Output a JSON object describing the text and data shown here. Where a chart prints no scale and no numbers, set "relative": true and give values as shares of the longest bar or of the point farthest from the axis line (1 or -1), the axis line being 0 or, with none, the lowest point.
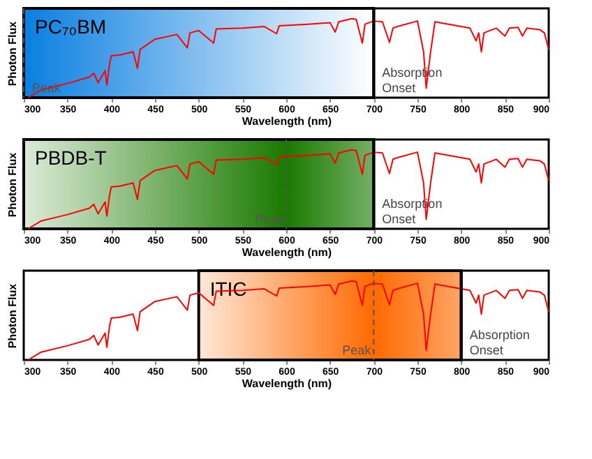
{
  "chart_data": [
    {
      "type": "line",
      "x": [
        305,
        320,
        350,
        375,
        380,
        385,
        393,
        395,
        398,
        400,
        410,
        425,
        430,
        433,
        450,
        475,
        487,
        490,
        500,
        517,
        520,
        550,
        575,
        589,
        592,
        625,
        650,
        656,
        660,
        675,
        680,
        687,
        690,
        700,
        710,
        718,
        722,
        730,
        750,
        757,
        760,
        765,
        770,
        800,
        810,
        817,
        820,
        823,
        826,
        840,
        850,
        855,
        865,
        870,
        875,
        890,
        895,
        900
      ],
      "series": [
        {
          "color": "#ff0000",
          "values": [
            0,
            0.1,
            0.18,
            0.26,
            0.31,
            0.19,
            0.34,
            0.16,
            0.42,
            0.53,
            0.54,
            0.58,
            0.37,
            0.61,
            0.74,
            0.8,
            0.63,
            0.82,
            0.85,
            0.69,
            0.87,
            0.88,
            0.9,
            0.81,
            0.91,
            0.93,
            0.95,
            0.83,
            0.96,
            1.0,
            0.99,
            0.69,
            0.93,
            0.97,
            0.96,
            0.7,
            0.88,
            0.91,
            0.97,
            0.58,
            0.12,
            0.58,
            0.96,
            0.9,
            0.88,
            0.72,
            0.82,
            0.58,
            0.82,
            0.88,
            0.78,
            0.88,
            0.89,
            0.78,
            0.88,
            0.86,
            0.82,
            0.61
          ]
        }
      ],
      "relative": true,
      "xlim": [
        300,
        900
      ],
      "xticks": [
        300,
        350,
        400,
        450,
        500,
        550,
        600,
        650,
        700,
        750,
        800,
        850,
        900
      ],
      "xlabel": "Wavelength (nm)",
      "ylabel": "Photon Flux",
      "tick_labels": "x",
      "grid": false,
      "line_style": "solid",
      "marker": "none",
      "bands": [
        {
          "axis": "x",
          "from": 300,
          "to": 700,
          "label": "PC₇₀BM",
          "color": "#0a7fe0"
        }
      ],
      "ref_lines": [
        {
          "axis": "x",
          "value": 700,
          "label": "Absorption Onset",
          "color": "#000000",
          "line_style": "solid"
        },
        {
          "axis": "x",
          "value": 300,
          "label": "Peak",
          "color": "#555555",
          "line_style": "dashed"
        }
      ]
    },
    {
      "type": "line",
      "x": [
        305,
        320,
        350,
        375,
        380,
        385,
        393,
        395,
        398,
        400,
        410,
        425,
        430,
        433,
        450,
        475,
        487,
        490,
        500,
        517,
        520,
        550,
        575,
        589,
        592,
        625,
        650,
        656,
        660,
        675,
        680,
        687,
        690,
        700,
        710,
        718,
        722,
        730,
        750,
        757,
        760,
        765,
        770,
        800,
        810,
        817,
        820,
        823,
        826,
        840,
        850,
        855,
        865,
        870,
        875,
        890,
        895,
        900
      ],
      "series": [
        {
          "color": "#ff0000",
          "values": [
            0,
            0.1,
            0.18,
            0.26,
            0.31,
            0.19,
            0.34,
            0.16,
            0.42,
            0.53,
            0.54,
            0.58,
            0.37,
            0.61,
            0.74,
            0.8,
            0.63,
            0.82,
            0.85,
            0.69,
            0.87,
            0.88,
            0.9,
            0.81,
            0.91,
            0.93,
            0.95,
            0.83,
            0.96,
            1.0,
            0.99,
            0.69,
            0.93,
            0.97,
            0.96,
            0.7,
            0.88,
            0.91,
            0.97,
            0.58,
            0.12,
            0.58,
            0.96,
            0.9,
            0.88,
            0.72,
            0.82,
            0.58,
            0.82,
            0.88,
            0.78,
            0.88,
            0.89,
            0.78,
            0.88,
            0.86,
            0.82,
            0.61
          ]
        }
      ],
      "relative": true,
      "xlim": [
        300,
        900
      ],
      "xticks": [
        300,
        350,
        400,
        450,
        500,
        550,
        600,
        650,
        700,
        750,
        800,
        850,
        900
      ],
      "xlabel": "Wavelength (nm)",
      "ylabel": "Photon Flux",
      "tick_labels": "x",
      "grid": false,
      "line_style": "solid",
      "marker": "none",
      "bands": [
        {
          "axis": "x",
          "from": 300,
          "to": 700,
          "label": "PBDB-T",
          "color": "#1a7a00"
        }
      ],
      "ref_lines": [
        {
          "axis": "x",
          "value": 700,
          "label": "Absorption Onset",
          "color": "#000000",
          "line_style": "solid"
        },
        {
          "axis": "x",
          "value": 600,
          "label": "Peak",
          "color": "#555555",
          "line_style": "dashed"
        }
      ]
    },
    {
      "type": "line",
      "x": [
        305,
        320,
        350,
        375,
        380,
        385,
        393,
        395,
        398,
        400,
        410,
        425,
        430,
        433,
        450,
        475,
        487,
        490,
        500,
        517,
        520,
        550,
        575,
        589,
        592,
        625,
        650,
        656,
        660,
        675,
        680,
        687,
        690,
        700,
        710,
        718,
        722,
        730,
        750,
        757,
        760,
        765,
        770,
        800,
        810,
        817,
        820,
        823,
        826,
        840,
        850,
        855,
        865,
        870,
        875,
        890,
        895,
        900
      ],
      "series": [
        {
          "color": "#ff0000",
          "values": [
            0,
            0.1,
            0.18,
            0.26,
            0.31,
            0.19,
            0.34,
            0.16,
            0.42,
            0.53,
            0.54,
            0.58,
            0.37,
            0.61,
            0.74,
            0.8,
            0.63,
            0.82,
            0.85,
            0.69,
            0.87,
            0.88,
            0.9,
            0.81,
            0.91,
            0.93,
            0.95,
            0.83,
            0.96,
            1.0,
            0.99,
            0.69,
            0.93,
            0.97,
            0.96,
            0.7,
            0.88,
            0.91,
            0.97,
            0.58,
            0.12,
            0.58,
            0.96,
            0.9,
            0.88,
            0.72,
            0.82,
            0.58,
            0.82,
            0.88,
            0.78,
            0.88,
            0.89,
            0.78,
            0.88,
            0.86,
            0.82,
            0.61
          ]
        }
      ],
      "relative": true,
      "xlim": [
        300,
        900
      ],
      "xticks": [
        300,
        350,
        400,
        450,
        500,
        550,
        600,
        650,
        700,
        750,
        800,
        850,
        900
      ],
      "xlabel": "Wavelength (nm)",
      "ylabel": "Photon Flux",
      "tick_labels": "x",
      "grid": false,
      "line_style": "solid",
      "marker": "none",
      "bands": [
        {
          "axis": "x",
          "from": 500,
          "to": 800,
          "label": "ITIC",
          "color": "#ff6a00"
        }
      ],
      "ref_lines": [
        {
          "axis": "x",
          "value": 800,
          "label": "Absorption Onset",
          "color": "#000000",
          "line_style": "solid"
        },
        {
          "axis": "x",
          "value": 700,
          "label": "Peak",
          "color": "#555555",
          "line_style": "dashed"
        }
      ]
    }
  ]
}
